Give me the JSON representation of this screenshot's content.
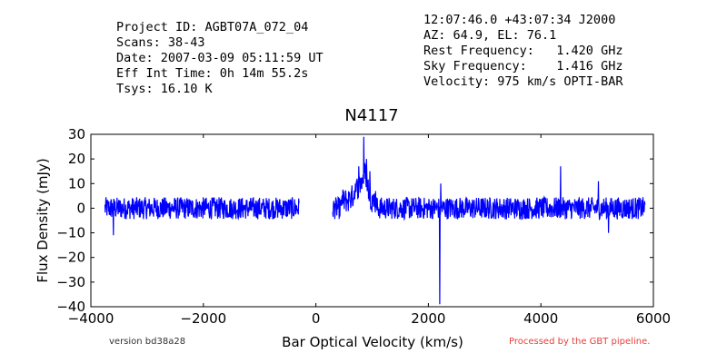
{
  "header_left": [
    "Project ID: AGBT07A_072_04",
    "Scans: 38-43",
    "Date: 2007-03-09 05:11:59 UT",
    "Eff Int Time: 0h 14m 55.2s",
    "Tsys: 16.10 K"
  ],
  "header_right": [
    "12:07:46.0 +43:07:34 J2000",
    "AZ: 64.9, EL: 76.1",
    "Rest Frequency:   1.420 GHz",
    "Sky Frequency:    1.416 GHz",
    "Velocity: 975 km/s OPTI-BAR"
  ],
  "footer": {
    "version": "version bd38a28",
    "processed": "Processed by the GBT pipeline.",
    "processed_color": "#e8403a"
  },
  "chart_data": {
    "type": "line",
    "title": "N4117",
    "xlabel": "Bar Optical Velocity (km/s)",
    "ylabel": "Flux Density (mJy)",
    "xlim": [
      -4000,
      6000
    ],
    "ylim": [
      -40,
      30
    ],
    "xticks": [
      "−4000",
      "−2000",
      "0",
      "2000",
      "4000",
      "6000"
    ],
    "yticks": [
      "−40",
      "−30",
      "−20",
      "−10",
      "0",
      "10",
      "20",
      "30"
    ],
    "line_color": "#0000ff",
    "grid": false,
    "series": [
      {
        "noise_segments": [
          [
            -3750,
            -300
          ],
          [
            300,
            5850
          ]
        ],
        "noise_amplitude": 4.5,
        "features": [
          {
            "x": 600,
            "y": 6
          },
          {
            "x": 700,
            "y": 10
          },
          {
            "x": 760,
            "y": 17
          },
          {
            "x": 800,
            "y": 12
          },
          {
            "x": 850,
            "y": 29
          },
          {
            "x": 900,
            "y": 20
          },
          {
            "x": 960,
            "y": 15
          },
          {
            "x": 1000,
            "y": 5
          },
          {
            "x": 2200,
            "y": -39
          },
          {
            "x": 2220,
            "y": 10
          },
          {
            "x": -3600,
            "y": -11
          },
          {
            "x": 4350,
            "y": 17
          },
          {
            "x": 5020,
            "y": 11
          },
          {
            "x": 5200,
            "y": -10
          }
        ]
      }
    ]
  }
}
